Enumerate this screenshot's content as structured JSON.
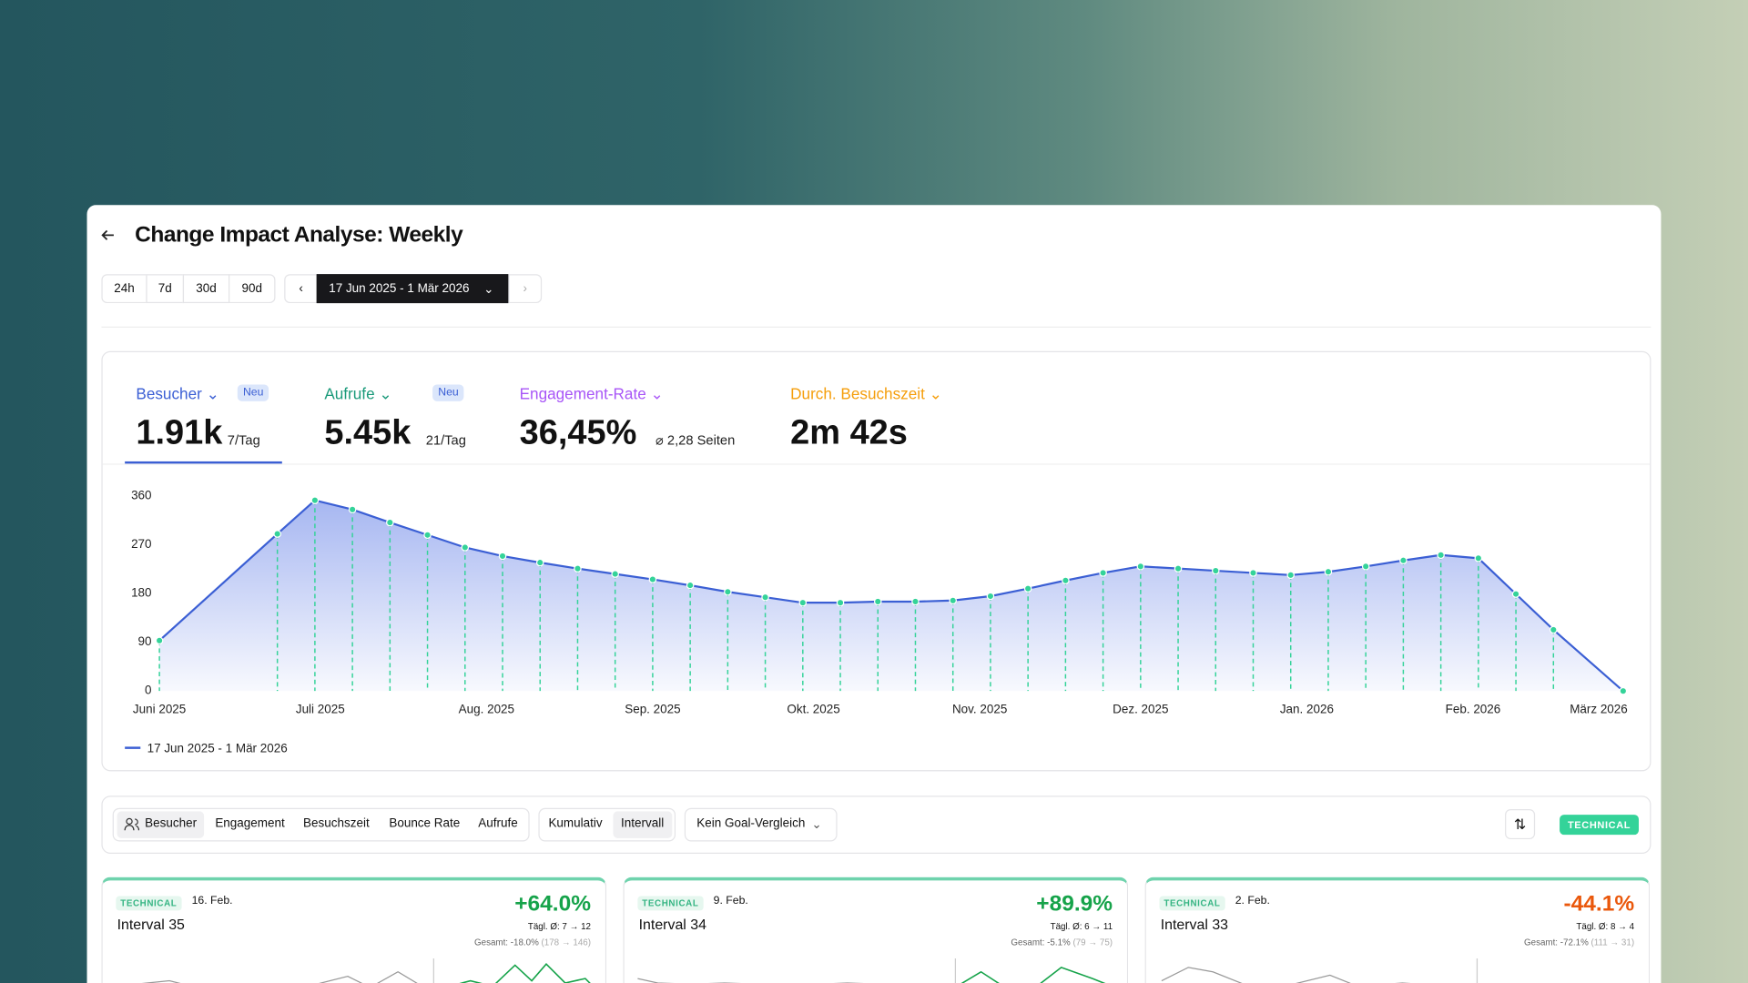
{
  "header": {
    "title": "Change Impact Analyse: Weekly"
  },
  "range_buttons": [
    "24h",
    "7d",
    "30d",
    "90d"
  ],
  "date_range": "17 Jun 2025 - 1 Mär 2026",
  "metrics": [
    {
      "label": "Besucher",
      "badge": "Neu",
      "value": "1.91k",
      "sub": "7/Tag"
    },
    {
      "label": "Aufrufe",
      "badge": "Neu",
      "value": "5.45k",
      "sub": "21/Tag"
    },
    {
      "label": "Engagement-Rate",
      "value": "36,45%",
      "sub": "⌀ 2,28 Seiten"
    },
    {
      "label": "Durch. Besuchszeit",
      "value": "2m 42s"
    }
  ],
  "chart_data": {
    "type": "line",
    "x": [
      0,
      22,
      29,
      36,
      43,
      50,
      57,
      64,
      71,
      78,
      85,
      92,
      99,
      106,
      113,
      120,
      127,
      134,
      141,
      148,
      155,
      162,
      169,
      176,
      183,
      190,
      197,
      204,
      211,
      218,
      225,
      232,
      239,
      246,
      253,
      260,
      273
    ],
    "xlim": [
      0,
      273
    ],
    "xticks": [
      {
        "value": 0,
        "label": "Juni 2025"
      },
      {
        "value": 30,
        "label": "Juli 2025"
      },
      {
        "value": 61,
        "label": "Aug. 2025"
      },
      {
        "value": 92,
        "label": "Sep. 2025"
      },
      {
        "value": 122,
        "label": "Okt. 2025"
      },
      {
        "value": 153,
        "label": "Nov. 2025"
      },
      {
        "value": 183,
        "label": "Dez. 2025"
      },
      {
        "value": 214,
        "label": "Jan. 2026"
      },
      {
        "value": 245,
        "label": "Feb. 2026"
      },
      {
        "value": 273,
        "label": "März 2026"
      }
    ],
    "ylim": [
      0,
      360
    ],
    "yticks": [
      0,
      90,
      180,
      270,
      360
    ],
    "series": [
      {
        "name": "17 Jun 2025 - 1 Mär 2026",
        "color": "#3b5fd4",
        "values": [
          93,
          290,
          352,
          335,
          311,
          288,
          265,
          249,
          237,
          226,
          216,
          206,
          195,
          183,
          173,
          163,
          163,
          165,
          165,
          167,
          175,
          189,
          204,
          218,
          230,
          226,
          222,
          218,
          214,
          220,
          230,
          241,
          251,
          245,
          179,
          113,
          0
        ]
      }
    ],
    "marker_color": "#34d399"
  },
  "toolbar": {
    "metric_tabs": [
      "Besucher",
      "Engagement",
      "Besuchszeit",
      "Bounce Rate",
      "Aufrufe"
    ],
    "modes": [
      "Kumulativ",
      "Intervall"
    ],
    "goal": "Kein Goal-Vergleich",
    "tag": "TECHNICAL"
  },
  "cards": [
    {
      "tag": "TECHNICAL",
      "date": "16. Feb.",
      "name": "Interval 35",
      "change": "+64.0%",
      "daily": "Tägl. Ø: 7 → 12",
      "total": "Gesamt: -18.0%",
      "total_detail": "(178 → 146)"
    },
    {
      "tag": "TECHNICAL",
      "date": "9. Feb.",
      "name": "Interval 34",
      "change": "+89.9%",
      "daily": "Tägl. Ø: 6 → 11",
      "total": "Gesamt: -5.1%",
      "total_detail": "(79 → 75)"
    },
    {
      "tag": "TECHNICAL",
      "date": "2. Feb.",
      "name": "Interval 33",
      "change": "-44.1%",
      "daily": "Tägl. Ø: 8 → 4",
      "total": "Gesamt: -72.1%",
      "total_detail": "(111 → 31)"
    }
  ]
}
